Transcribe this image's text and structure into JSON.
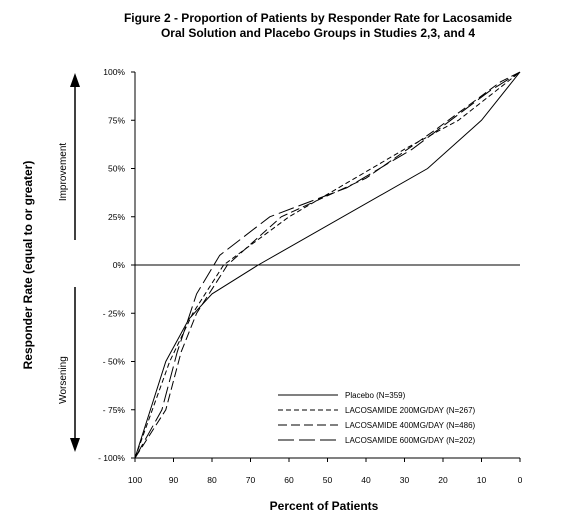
{
  "chart_data": {
    "type": "line",
    "title_lines": [
      "Figure 2 - Proportion of Patients by Responder Rate for Lacosamide",
      "Oral Solution and Placebo Groups in Studies 2,3, and 4"
    ],
    "xlabel": "Percent of Patients",
    "ylabel": "Responder Rate (equal to or greater)",
    "xlim": [
      100,
      0
    ],
    "ylim": [
      -100,
      100
    ],
    "x_ticks": [
      100,
      90,
      80,
      70,
      60,
      50,
      40,
      30,
      20,
      10,
      0
    ],
    "y_ticks": [
      {
        "value": 100,
        "label": "100%"
      },
      {
        "value": 75,
        "label": "75%"
      },
      {
        "value": 50,
        "label": "50%"
      },
      {
        "value": 25,
        "label": "25%"
      },
      {
        "value": 0,
        "label": "0%"
      },
      {
        "value": -25,
        "label": "- 25%"
      },
      {
        "value": -50,
        "label": "- 50%"
      },
      {
        "value": -75,
        "label": "- 75%"
      },
      {
        "value": -100,
        "label": "- 100%"
      }
    ],
    "side_labels": {
      "top": "Improvement",
      "bottom": "Worsening"
    },
    "legend_position": "bottom-right",
    "series": [
      {
        "name": "Placebo (N=359)",
        "dash": "solid",
        "x": [
          100,
          92,
          86,
          80,
          68,
          24,
          10,
          0
        ],
        "y": [
          -100,
          -50,
          -28,
          -15,
          0,
          50,
          75,
          100
        ]
      },
      {
        "name": "LACOSAMIDE 200MG/DAY   (N=267)",
        "dash": "short",
        "x": [
          100,
          91,
          85,
          77,
          60,
          30,
          16,
          0
        ],
        "y": [
          -100,
          -50,
          -25,
          0,
          25,
          60,
          75,
          100
        ]
      },
      {
        "name": "LACOSAMIDE 400MG/DAY   (N=486)",
        "dash": "medium",
        "x": [
          100,
          92,
          88,
          84,
          76,
          62,
          40,
          22,
          5,
          0
        ],
        "y": [
          -100,
          -75,
          -45,
          -25,
          0,
          25,
          45,
          70,
          95,
          100
        ]
      },
      {
        "name": "LACOSAMIDE 600MG/DAY   (N=202)",
        "dash": "long",
        "x": [
          100,
          93,
          89,
          84,
          78,
          65,
          45,
          28,
          8,
          0
        ],
        "y": [
          -100,
          -75,
          -45,
          -15,
          5,
          25,
          40,
          60,
          90,
          100
        ]
      }
    ]
  }
}
